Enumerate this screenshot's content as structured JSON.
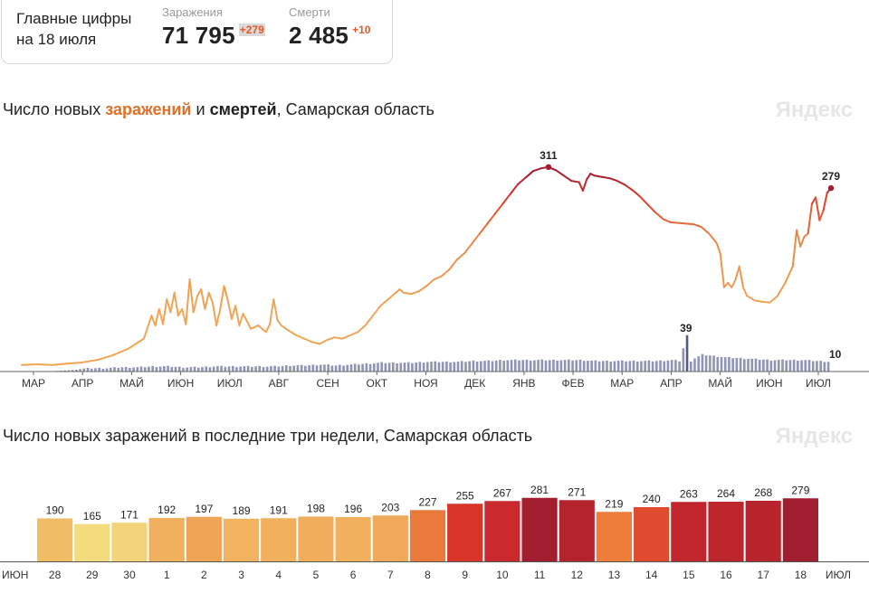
{
  "summary": {
    "title": "Главные цифры на 18 июля",
    "cases_label": "Заражения",
    "cases_value": "71 795",
    "cases_delta": "+279",
    "deaths_label": "Смерти",
    "deaths_value": "2 485",
    "deaths_delta": "+10"
  },
  "chart1_title": {
    "part1": "Число новых ",
    "part2": "заражений",
    "part3": " и ",
    "part4": "смертей",
    "part5": ", Самарская область"
  },
  "chart2_title": "Число новых заражений в последние три недели, Самарская область",
  "watermark": "Яндекс",
  "colors": {
    "low": "#f3dc7e",
    "mid": "#f0a556",
    "high": "#e0402a",
    "top": "#a21e2e",
    "deaths": "#8f93b5"
  },
  "chart_data": [
    {
      "type": "line",
      "title": "Число новых заражений и смертей, Самарская область",
      "x_ticks": [
        "МАР",
        "АПР",
        "МАЙ",
        "ИЮН",
        "ИЮЛ",
        "АВГ",
        "СЕН",
        "ОКТ",
        "НОЯ",
        "ДЕК",
        "ЯНВ",
        "ФЕВ",
        "МАР",
        "АПР",
        "МАЙ",
        "ИЮН",
        "ИЮЛ"
      ],
      "ylim": [
        0,
        330
      ],
      "series": [
        {
          "name": "Заражения",
          "points": [
            [
              0,
              10
            ],
            [
              4,
              11
            ],
            [
              8,
              10
            ],
            [
              12,
              12
            ],
            [
              16,
              14
            ],
            [
              20,
              18
            ],
            [
              24,
              25
            ],
            [
              28,
              35
            ],
            [
              32,
              50
            ],
            [
              34,
              85
            ],
            [
              35,
              70
            ],
            [
              36,
              95
            ],
            [
              37,
              72
            ],
            [
              38,
              110
            ],
            [
              39,
              90
            ],
            [
              40,
              120
            ],
            [
              41,
              85
            ],
            [
              42,
              95
            ],
            [
              43,
              72
            ],
            [
              44,
              140
            ],
            [
              45,
              90
            ],
            [
              46,
              115
            ],
            [
              47,
              125
            ],
            [
              48,
              95
            ],
            [
              49,
              120
            ],
            [
              50,
              105
            ],
            [
              51,
              70
            ],
            [
              52,
              95
            ],
            [
              53,
              130
            ],
            [
              54,
              108
            ],
            [
              55,
              80
            ],
            [
              56,
              100
            ],
            [
              57,
              70
            ],
            [
              58,
              88
            ],
            [
              60,
              65
            ],
            [
              62,
              70
            ],
            [
              64,
              60
            ],
            [
              65,
              72
            ],
            [
              66,
              110
            ],
            [
              67,
              78
            ],
            [
              68,
              70
            ],
            [
              70,
              62
            ],
            [
              72,
              55
            ],
            [
              74,
              50
            ],
            [
              76,
              45
            ],
            [
              78,
              42
            ],
            [
              80,
              48
            ],
            [
              82,
              52
            ],
            [
              84,
              50
            ],
            [
              86,
              55
            ],
            [
              88,
              60
            ],
            [
              90,
              70
            ],
            [
              92,
              85
            ],
            [
              94,
              100
            ],
            [
              95,
              105
            ],
            [
              96,
              110
            ],
            [
              98,
              120
            ],
            [
              99,
              125
            ],
            [
              100,
              120
            ],
            [
              102,
              118
            ],
            [
              104,
              122
            ],
            [
              106,
              130
            ],
            [
              108,
              140
            ],
            [
              110,
              145
            ],
            [
              112,
              155
            ],
            [
              114,
              170
            ],
            [
              116,
              180
            ],
            [
              118,
              195
            ],
            [
              120,
              210
            ],
            [
              122,
              225
            ],
            [
              124,
              240
            ],
            [
              126,
              255
            ],
            [
              128,
              270
            ],
            [
              130,
              285
            ],
            [
              132,
              295
            ],
            [
              134,
              305
            ],
            [
              136,
              309
            ],
            [
              138,
              311
            ],
            [
              140,
              306
            ],
            [
              142,
              298
            ],
            [
              144,
              290
            ],
            [
              146,
              288
            ],
            [
              147,
              275
            ],
            [
              148,
              292
            ],
            [
              149,
              301
            ],
            [
              150,
              298
            ],
            [
              152,
              296
            ],
            [
              154,
              294
            ],
            [
              156,
              290
            ],
            [
              158,
              284
            ],
            [
              160,
              276
            ],
            [
              162,
              266
            ],
            [
              164,
              254
            ],
            [
              166,
              242
            ],
            [
              168,
              232
            ],
            [
              170,
              227
            ],
            [
              172,
              226
            ],
            [
              174,
              225
            ],
            [
              176,
              224
            ],
            [
              178,
              220
            ],
            [
              180,
              210
            ],
            [
              182,
              196
            ],
            [
              183,
              180
            ],
            [
              184,
              128
            ],
            [
              185,
              135
            ],
            [
              186,
              128
            ],
            [
              187,
              140
            ],
            [
              188,
              160
            ],
            [
              189,
              128
            ],
            [
              190,
              115
            ],
            [
              191,
              112
            ],
            [
              192,
              108
            ],
            [
              194,
              106
            ],
            [
              196,
              105
            ],
            [
              198,
              115
            ],
            [
              200,
              135
            ],
            [
              202,
              160
            ],
            [
              203,
              215
            ],
            [
              204,
              190
            ],
            [
              205,
              205
            ],
            [
              206,
              210
            ],
            [
              207,
              255
            ],
            [
              208,
              265
            ],
            [
              209,
              230
            ],
            [
              210,
              245
            ],
            [
              211,
              272
            ],
            [
              212,
              279
            ]
          ]
        },
        {
          "name": "Смерти",
          "points": [
            [
              0,
              0
            ],
            [
              6,
              0
            ],
            [
              10,
              1
            ],
            [
              14,
              2
            ],
            [
              18,
              3
            ],
            [
              22,
              3
            ],
            [
              26,
              4
            ],
            [
              30,
              4
            ],
            [
              34,
              5
            ],
            [
              38,
              5
            ],
            [
              42,
              4
            ],
            [
              46,
              4
            ],
            [
              50,
              5
            ],
            [
              54,
              5
            ],
            [
              58,
              5
            ],
            [
              62,
              5
            ],
            [
              66,
              5
            ],
            [
              70,
              6
            ],
            [
              74,
              6
            ],
            [
              78,
              7
            ],
            [
              82,
              6
            ],
            [
              86,
              7
            ],
            [
              90,
              8
            ],
            [
              94,
              9
            ],
            [
              98,
              9
            ],
            [
              102,
              9
            ],
            [
              106,
              10
            ],
            [
              110,
              10
            ],
            [
              114,
              10
            ],
            [
              118,
              11
            ],
            [
              122,
              11
            ],
            [
              126,
              12
            ],
            [
              130,
              12
            ],
            [
              134,
              12
            ],
            [
              138,
              12
            ],
            [
              142,
              12
            ],
            [
              146,
              12
            ],
            [
              150,
              11
            ],
            [
              154,
              11
            ],
            [
              158,
              11
            ],
            [
              162,
              11
            ],
            [
              166,
              11
            ],
            [
              170,
              12
            ],
            [
              172,
              11
            ],
            [
              174,
              39
            ],
            [
              175,
              11
            ],
            [
              176,
              14
            ],
            [
              178,
              18
            ],
            [
              180,
              17
            ],
            [
              184,
              15
            ],
            [
              188,
              14
            ],
            [
              192,
              13
            ],
            [
              196,
              12
            ],
            [
              200,
              12
            ],
            [
              204,
              12
            ],
            [
              208,
              11
            ],
            [
              212,
              10
            ]
          ]
        }
      ],
      "annotations": [
        {
          "series": "Заражения",
          "label": "311",
          "x": 138,
          "y": 311
        },
        {
          "series": "Заражения",
          "label": "279",
          "x": 212,
          "y": 279
        },
        {
          "series": "Смерти",
          "label": "39",
          "x": 174,
          "y": 39
        },
        {
          "series": "Смерти",
          "label": "10",
          "x": 212,
          "y": 10
        }
      ]
    },
    {
      "type": "bar",
      "title": "Число новых заражений в последние три недели, Самарская область",
      "start_label": "ИЮН",
      "end_label": "ИЮЛ",
      "categories": [
        "28",
        "29",
        "30",
        "1",
        "2",
        "3",
        "4",
        "5",
        "6",
        "7",
        "8",
        "9",
        "10",
        "11",
        "12",
        "13",
        "14",
        "15",
        "16",
        "17",
        "18"
      ],
      "weekend": [
        false,
        false,
        false,
        false,
        false,
        true,
        true,
        false,
        false,
        false,
        false,
        false,
        true,
        true,
        false,
        false,
        false,
        false,
        false,
        true,
        true
      ],
      "values": [
        190,
        165,
        171,
        192,
        197,
        189,
        191,
        198,
        196,
        203,
        227,
        255,
        267,
        281,
        271,
        219,
        240,
        263,
        264,
        268,
        279
      ],
      "bar_colors": [
        "#f1bd64",
        "#f3dc7e",
        "#f3d47a",
        "#f1b05e",
        "#f0a556",
        "#f1b360",
        "#f1b05e",
        "#f1ad5c",
        "#f1b05e",
        "#f0a95a",
        "#ea7a3c",
        "#d8342a",
        "#c9282c",
        "#a21e2e",
        "#b3242c",
        "#ee7c3a",
        "#e04a2e",
        "#c0262c",
        "#bc262c",
        "#b8242c",
        "#a01e2e"
      ]
    }
  ]
}
